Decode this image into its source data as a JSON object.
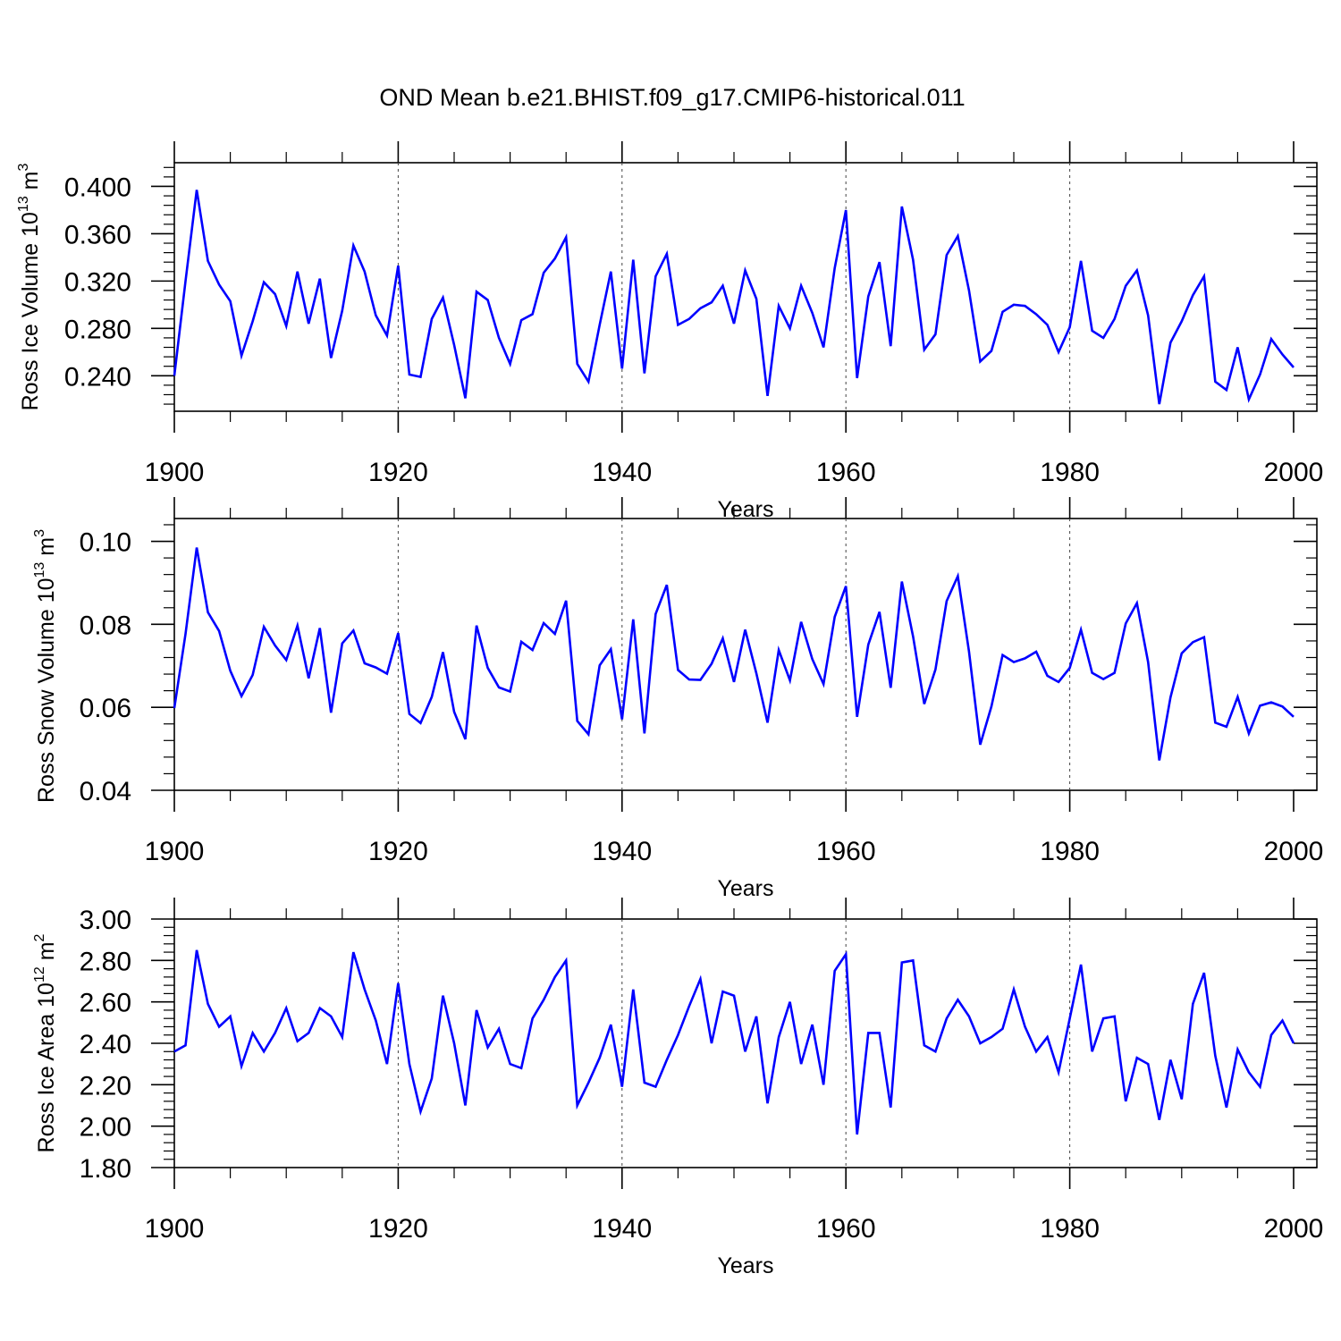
{
  "figure": {
    "title": "OND Mean b.e21.BHIST.f09_g17.CMIP6-historical.011"
  },
  "chart_data": [
    {
      "type": "line",
      "title": "OND Mean b.e21.BHIST.f09_g17.CMIP6-historical.011",
      "xlabel": "Years",
      "ylabel_main": "Ross Ice Volume 10",
      "ylabel_sup1": "13",
      "ylabel_unit": " m",
      "ylabel_sup2": "3",
      "xlim": [
        1900,
        2000
      ],
      "ylim": [
        0.21,
        0.42
      ],
      "xticks": [
        1900,
        1920,
        1940,
        1960,
        1980,
        2000
      ],
      "xtick_labels": [
        "1900",
        "1920",
        "1940",
        "1960",
        "1980",
        "2000"
      ],
      "yticks": [
        0.24,
        0.28,
        0.32,
        0.36,
        0.4
      ],
      "ytick_labels": [
        "0.240",
        "0.280",
        "0.320",
        "0.360",
        "0.400"
      ],
      "grid": "vertical-dashed",
      "series": [
        {
          "name": "Ross Ice Volume",
          "color": "#0000ff",
          "x_start": 1900,
          "values": [
            0.24,
            0.32,
            0.397,
            0.337,
            0.317,
            0.303,
            0.257,
            0.286,
            0.319,
            0.309,
            0.282,
            0.328,
            0.284,
            0.322,
            0.255,
            0.295,
            0.35,
            0.328,
            0.291,
            0.274,
            0.333,
            0.241,
            0.239,
            0.288,
            0.306,
            0.266,
            0.221,
            0.311,
            0.304,
            0.272,
            0.25,
            0.287,
            0.292,
            0.327,
            0.339,
            0.357,
            0.25,
            0.235,
            0.283,
            0.328,
            0.246,
            0.338,
            0.242,
            0.324,
            0.343,
            0.283,
            0.288,
            0.297,
            0.302,
            0.316,
            0.284,
            0.329,
            0.305,
            0.223,
            0.299,
            0.28,
            0.316,
            0.293,
            0.264,
            0.331,
            0.38,
            0.238,
            0.307,
            0.336,
            0.265,
            0.383,
            0.338,
            0.262,
            0.275,
            0.342,
            0.358,
            0.312,
            0.252,
            0.261,
            0.294,
            0.3,
            0.299,
            0.292,
            0.283,
            0.26,
            0.281,
            0.337,
            0.278,
            0.272,
            0.288,
            0.316,
            0.329,
            0.291,
            0.216,
            0.268,
            0.286,
            0.308,
            0.324,
            0.235,
            0.228,
            0.264,
            0.22,
            0.241,
            0.271,
            0.258,
            0.247
          ]
        }
      ]
    },
    {
      "type": "line",
      "xlabel": "Years",
      "ylabel_main": "Ross Snow Volume 10",
      "ylabel_sup1": "13",
      "ylabel_unit": " m",
      "ylabel_sup2": "3",
      "xlim": [
        1900,
        2000
      ],
      "ylim": [
        0.04,
        0.1055
      ],
      "xticks": [
        1900,
        1920,
        1940,
        1960,
        1980,
        2000
      ],
      "xtick_labels": [
        "1900",
        "1920",
        "1940",
        "1960",
        "1980",
        "2000"
      ],
      "yticks": [
        0.04,
        0.06,
        0.08,
        0.1
      ],
      "ytick_labels": [
        "0.04",
        "0.06",
        "0.08",
        "0.10"
      ],
      "grid": "vertical-dashed",
      "series": [
        {
          "name": "Ross Snow Volume",
          "color": "#0000ff",
          "x_start": 1900,
          "values": [
            0.0598,
            0.0777,
            0.0985,
            0.0829,
            0.0784,
            0.0688,
            0.0627,
            0.0678,
            0.0794,
            0.0749,
            0.0714,
            0.0797,
            0.067,
            0.0791,
            0.0587,
            0.0754,
            0.0785,
            0.0706,
            0.0696,
            0.0681,
            0.0779,
            0.0584,
            0.0562,
            0.0625,
            0.0733,
            0.0589,
            0.0523,
            0.0797,
            0.0695,
            0.0648,
            0.0638,
            0.0758,
            0.0738,
            0.0803,
            0.0777,
            0.0857,
            0.0567,
            0.0535,
            0.0701,
            0.074,
            0.0571,
            0.0812,
            0.0537,
            0.0825,
            0.0895,
            0.069,
            0.0667,
            0.0666,
            0.0705,
            0.0766,
            0.0661,
            0.0787,
            0.0682,
            0.0563,
            0.0738,
            0.0665,
            0.0806,
            0.0716,
            0.0656,
            0.0818,
            0.0892,
            0.0577,
            0.0751,
            0.083,
            0.0647,
            0.0903,
            0.0771,
            0.0608,
            0.0691,
            0.0856,
            0.0916,
            0.0734,
            0.051,
            0.0602,
            0.0726,
            0.0709,
            0.0718,
            0.0734,
            0.0676,
            0.0661,
            0.0695,
            0.0787,
            0.0683,
            0.0668,
            0.0683,
            0.0802,
            0.0851,
            0.0709,
            0.0472,
            0.0624,
            0.073,
            0.0757,
            0.0769,
            0.0563,
            0.0553,
            0.0625,
            0.0537,
            0.0604,
            0.0612,
            0.0602,
            0.0577
          ]
        }
      ]
    },
    {
      "type": "line",
      "xlabel": "Years",
      "ylabel_main": "Ross Ice Area 10",
      "ylabel_sup1": "12",
      "ylabel_unit": " m",
      "ylabel_sup2": "2",
      "xlim": [
        1900,
        2000
      ],
      "ylim": [
        1.8,
        3.0
      ],
      "xticks": [
        1900,
        1920,
        1940,
        1960,
        1980,
        2000
      ],
      "xtick_labels": [
        "1900",
        "1920",
        "1940",
        "1960",
        "1980",
        "2000"
      ],
      "yticks": [
        1.8,
        2.0,
        2.2,
        2.4,
        2.6,
        2.8,
        3.0
      ],
      "ytick_labels": [
        "1.80",
        "2.00",
        "2.20",
        "2.40",
        "2.60",
        "2.80",
        "3.00"
      ],
      "grid": "vertical-dashed",
      "series": [
        {
          "name": "Ross Ice Area",
          "color": "#0000ff",
          "x_start": 1900,
          "values": [
            2.36,
            2.39,
            2.85,
            2.59,
            2.48,
            2.53,
            2.29,
            2.45,
            2.36,
            2.45,
            2.57,
            2.41,
            2.45,
            2.57,
            2.53,
            2.43,
            2.84,
            2.66,
            2.51,
            2.3,
            2.69,
            2.3,
            2.07,
            2.23,
            2.63,
            2.4,
            2.1,
            2.56,
            2.38,
            2.47,
            2.3,
            2.28,
            2.52,
            2.61,
            2.72,
            2.8,
            2.1,
            2.21,
            2.33,
            2.49,
            2.19,
            2.66,
            2.21,
            2.19,
            2.32,
            2.44,
            2.58,
            2.71,
            2.4,
            2.65,
            2.63,
            2.36,
            2.53,
            2.11,
            2.43,
            2.6,
            2.3,
            2.49,
            2.2,
            2.75,
            2.83,
            1.96,
            2.45,
            2.45,
            2.09,
            2.79,
            2.8,
            2.39,
            2.36,
            2.52,
            2.61,
            2.53,
            2.4,
            2.43,
            2.47,
            2.66,
            2.48,
            2.36,
            2.43,
            2.26,
            2.52,
            2.78,
            2.36,
            2.52,
            2.53,
            2.12,
            2.33,
            2.3,
            2.03,
            2.32,
            2.13,
            2.59,
            2.74,
            2.34,
            2.09,
            2.37,
            2.26,
            2.19,
            2.44,
            2.51,
            2.4
          ]
        }
      ]
    }
  ]
}
